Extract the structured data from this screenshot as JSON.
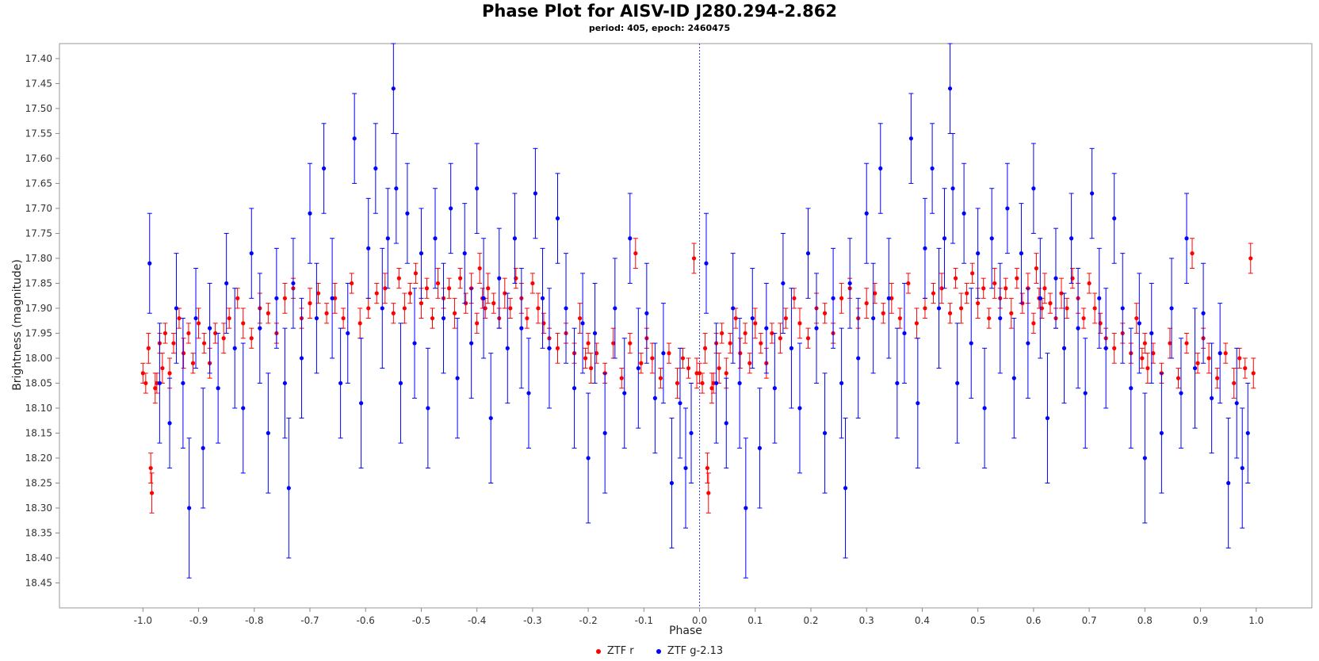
{
  "chart_data": {
    "type": "scatter",
    "title": "Phase Plot for AISV-ID J280.294-2.862",
    "subtitle": "period: 405, epoch: 2460475",
    "xlabel": "Phase",
    "ylabel": "Brightness (magnitude)",
    "xlim": [
      -1.15,
      1.1
    ],
    "ylim": [
      18.5,
      17.37
    ],
    "y_inverted": true,
    "x_ticks": [
      "-1.0",
      "-0.9",
      "-0.8",
      "-0.7",
      "-0.6",
      "-0.5",
      "-0.4",
      "-0.3",
      "-0.2",
      "-0.1",
      "0.0",
      "0.1",
      "0.2",
      "0.3",
      "0.4",
      "0.5",
      "0.6",
      "0.7",
      "0.8",
      "0.9",
      "1.0"
    ],
    "y_ticks": [
      "17.40",
      "17.45",
      "17.50",
      "17.55",
      "17.60",
      "17.65",
      "17.70",
      "17.75",
      "17.80",
      "17.85",
      "17.90",
      "17.95",
      "18.00",
      "18.05",
      "18.10",
      "18.15",
      "18.20",
      "18.25",
      "18.30",
      "18.35",
      "18.40",
      "18.45"
    ],
    "zero_line": "dotted vertical at phase 0.0",
    "grid": false,
    "legend_position": "bottom-center",
    "series": [
      {
        "name": "ZTF r",
        "color": "#ff0000",
        "marker": "circle",
        "phase": [
          0.0,
          0.005,
          0.01,
          0.014,
          0.016,
          0.022,
          0.025,
          0.03,
          0.035,
          0.04,
          0.048,
          0.055,
          0.065,
          0.073,
          0.082,
          0.09,
          0.1,
          0.11,
          0.12,
          0.13,
          0.145,
          0.155,
          0.17,
          0.18,
          0.195,
          0.21,
          0.225,
          0.24,
          0.255,
          0.27,
          0.285,
          0.3,
          0.315,
          0.33,
          0.345,
          0.36,
          0.375,
          0.39,
          0.405,
          0.42,
          0.435,
          0.45,
          0.46,
          0.47,
          0.48,
          0.49,
          0.5,
          0.51,
          0.52,
          0.53,
          0.54,
          0.55,
          0.56,
          0.57,
          0.58,
          0.59,
          0.6,
          0.605,
          0.61,
          0.615,
          0.62,
          0.63,
          0.64,
          0.65,
          0.66,
          0.67,
          0.68,
          0.69,
          0.7,
          0.71,
          0.72,
          0.73,
          0.745,
          0.76,
          0.775,
          0.785,
          0.795,
          0.8,
          0.805,
          0.815,
          0.83,
          0.845,
          0.86,
          0.875,
          0.885,
          0.895,
          0.905,
          0.915,
          0.93,
          0.945,
          0.96,
          0.97,
          0.98,
          0.99,
          0.995
        ],
        "magnitude": [
          18.03,
          18.05,
          17.98,
          18.22,
          18.27,
          18.06,
          18.05,
          17.97,
          18.02,
          17.95,
          18.03,
          17.97,
          17.92,
          17.99,
          17.95,
          18.01,
          17.93,
          17.97,
          18.01,
          17.95,
          17.96,
          17.92,
          17.88,
          17.93,
          17.96,
          17.9,
          17.91,
          17.95,
          17.88,
          17.86,
          17.92,
          17.89,
          17.87,
          17.91,
          17.88,
          17.92,
          17.85,
          17.93,
          17.9,
          17.87,
          17.86,
          17.91,
          17.84,
          17.9,
          17.87,
          17.83,
          17.89,
          17.86,
          17.92,
          17.85,
          17.88,
          17.86,
          17.91,
          17.84,
          17.89,
          17.86,
          17.93,
          17.82,
          17.88,
          17.9,
          17.86,
          17.89,
          17.92,
          17.87,
          17.9,
          17.84,
          17.88,
          17.92,
          17.85,
          17.9,
          17.93,
          17.96,
          17.98,
          17.95,
          17.99,
          17.92,
          18.0,
          17.97,
          18.02,
          17.99,
          18.03,
          17.97,
          18.04,
          17.97,
          17.79,
          18.01,
          17.96,
          18.0,
          18.04,
          17.99,
          18.05,
          18.0,
          18.02,
          17.8,
          18.03
        ],
        "error": [
          0.02,
          0.02,
          0.03,
          0.03,
          0.04,
          0.03,
          0.02,
          0.02,
          0.03,
          0.02,
          0.03,
          0.02,
          0.02,
          0.03,
          0.02,
          0.02,
          0.03,
          0.02,
          0.03,
          0.02,
          0.03,
          0.02,
          0.02,
          0.03,
          0.02,
          0.03,
          0.02,
          0.02,
          0.03,
          0.02,
          0.02,
          0.03,
          0.02,
          0.02,
          0.03,
          0.02,
          0.02,
          0.03,
          0.02,
          0.02,
          0.03,
          0.02,
          0.02,
          0.03,
          0.02,
          0.02,
          0.03,
          0.02,
          0.02,
          0.03,
          0.02,
          0.02,
          0.03,
          0.02,
          0.02,
          0.03,
          0.02,
          0.03,
          0.02,
          0.02,
          0.03,
          0.02,
          0.02,
          0.03,
          0.02,
          0.02,
          0.03,
          0.02,
          0.02,
          0.03,
          0.02,
          0.02,
          0.03,
          0.02,
          0.02,
          0.03,
          0.02,
          0.02,
          0.03,
          0.02,
          0.02,
          0.03,
          0.02,
          0.02,
          0.03,
          0.02,
          0.02,
          0.03,
          0.02,
          0.02,
          0.03,
          0.02,
          0.02,
          0.03,
          0.03
        ]
      },
      {
        "name": "ZTF g-2.13",
        "color": "#0000ff",
        "marker": "circle",
        "phase": [
          0.012,
          0.03,
          0.048,
          0.06,
          0.072,
          0.083,
          0.095,
          0.108,
          0.12,
          0.135,
          0.15,
          0.165,
          0.18,
          0.195,
          0.21,
          0.225,
          0.24,
          0.255,
          0.262,
          0.27,
          0.285,
          0.3,
          0.312,
          0.325,
          0.34,
          0.355,
          0.368,
          0.38,
          0.392,
          0.405,
          0.418,
          0.43,
          0.44,
          0.45,
          0.455,
          0.463,
          0.475,
          0.488,
          0.5,
          0.512,
          0.525,
          0.54,
          0.553,
          0.565,
          0.578,
          0.59,
          0.6,
          0.612,
          0.625,
          0.64,
          0.655,
          0.668,
          0.68,
          0.693,
          0.705,
          0.718,
          0.73,
          0.745,
          0.76,
          0.775,
          0.79,
          0.8,
          0.812,
          0.83,
          0.848,
          0.865,
          0.875,
          0.89,
          0.905,
          0.92,
          0.935,
          0.95,
          0.965,
          0.975,
          0.985
        ],
        "magnitude": [
          17.81,
          18.05,
          18.13,
          17.9,
          18.05,
          18.3,
          17.92,
          18.18,
          17.94,
          18.06,
          17.85,
          17.98,
          18.1,
          17.79,
          17.94,
          18.15,
          17.88,
          18.05,
          18.26,
          17.85,
          18.0,
          17.71,
          17.92,
          17.62,
          17.88,
          18.05,
          17.95,
          17.56,
          18.09,
          17.78,
          17.62,
          17.9,
          17.76,
          17.46,
          17.66,
          18.05,
          17.71,
          17.97,
          17.79,
          18.1,
          17.76,
          17.92,
          17.7,
          18.04,
          17.79,
          17.97,
          17.66,
          17.88,
          18.12,
          17.84,
          17.98,
          17.76,
          17.94,
          18.07,
          17.67,
          17.88,
          17.98,
          17.72,
          17.9,
          18.06,
          17.93,
          18.2,
          17.95,
          18.15,
          17.9,
          18.07,
          17.76,
          18.02,
          17.91,
          18.08,
          17.99,
          18.25,
          18.09,
          18.22,
          18.15
        ],
        "error": [
          0.1,
          0.12,
          0.09,
          0.11,
          0.13,
          0.14,
          0.1,
          0.12,
          0.09,
          0.11,
          0.1,
          0.12,
          0.13,
          0.09,
          0.11,
          0.12,
          0.1,
          0.11,
          0.14,
          0.09,
          0.12,
          0.1,
          0.11,
          0.09,
          0.12,
          0.11,
          0.1,
          0.09,
          0.13,
          0.1,
          0.09,
          0.12,
          0.1,
          0.09,
          0.11,
          0.12,
          0.1,
          0.11,
          0.09,
          0.12,
          0.1,
          0.11,
          0.09,
          0.12,
          0.1,
          0.11,
          0.09,
          0.12,
          0.13,
          0.1,
          0.11,
          0.09,
          0.12,
          0.11,
          0.09,
          0.1,
          0.12,
          0.09,
          0.11,
          0.12,
          0.1,
          0.13,
          0.1,
          0.12,
          0.1,
          0.11,
          0.09,
          0.12,
          0.1,
          0.11,
          0.1,
          0.13,
          0.11,
          0.12,
          0.1
        ]
      }
    ]
  },
  "legend": {
    "items": [
      {
        "label": "ZTF r",
        "color": "#ff0000"
      },
      {
        "label": "ZTF g-2.13",
        "color": "#0000ff"
      }
    ]
  }
}
